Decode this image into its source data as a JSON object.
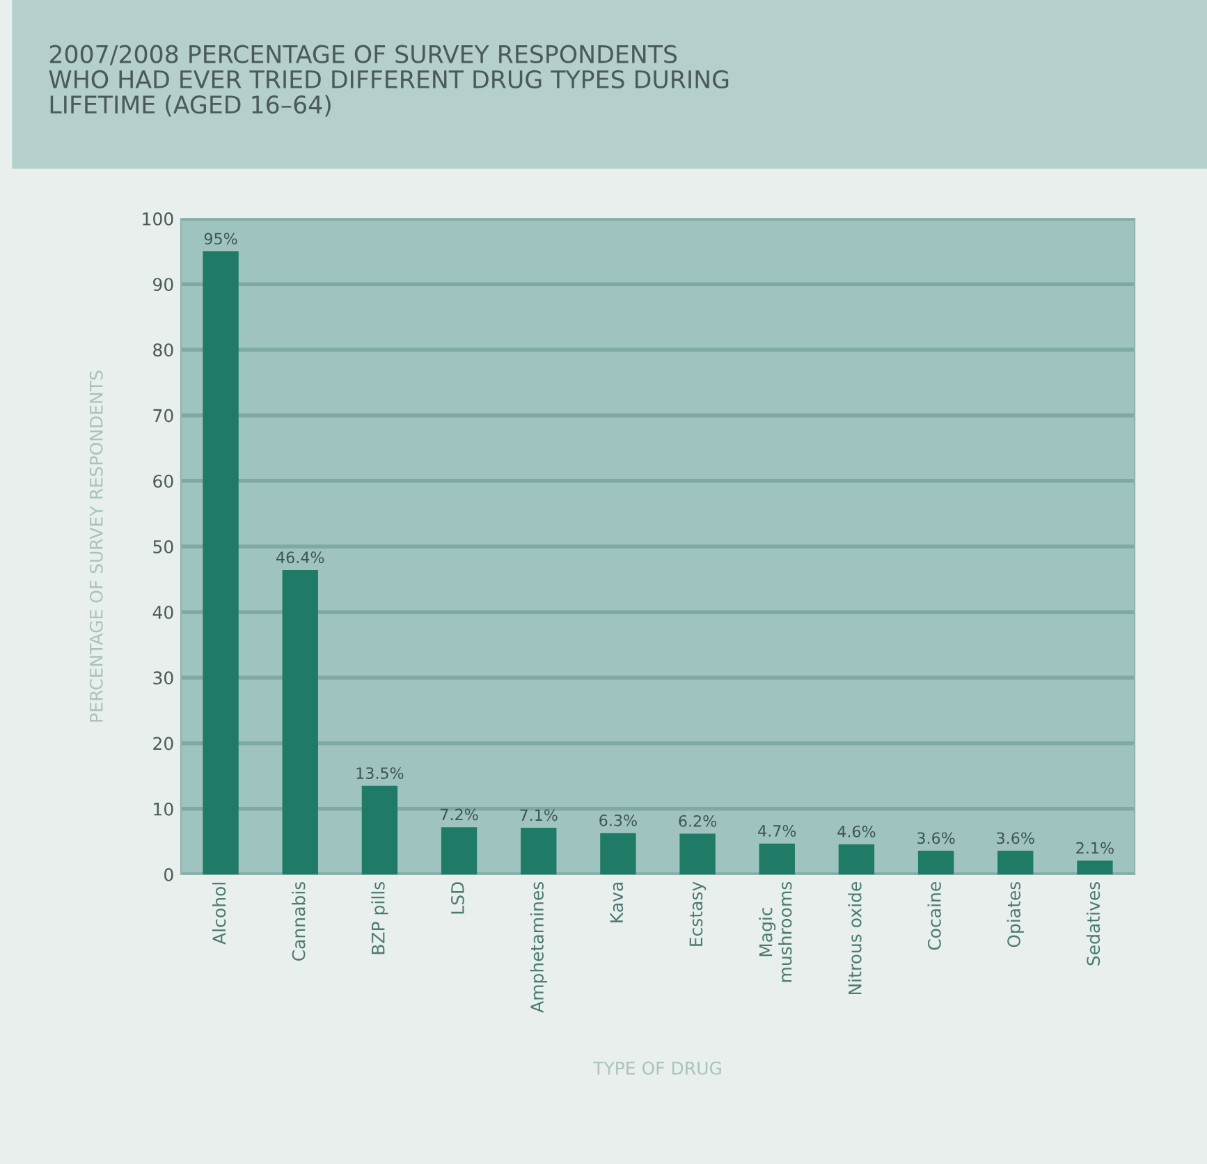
{
  "chart_data": {
    "type": "bar",
    "title": "2007/2008 PERCENTAGE OF SURVEY RESPONDENTS\nWHO HAD EVER TRIED DIFFERENT DRUG TYPES DURING\nLIFETIME (AGED 16–64)",
    "xlabel": "TYPE OF DRUG",
    "ylabel": "PERCENTAGE OF SURVEY RESPONDENTS",
    "categories": [
      "Alcohol",
      "Cannabis",
      "BZP pills",
      "LSD",
      "Amphetamines",
      "Kava",
      "Ecstasy",
      "Magic\nmushrooms",
      "Nitrous oxide",
      "Cocaine",
      "Opiates",
      "Sedatives"
    ],
    "values": [
      95,
      46.4,
      13.5,
      7.2,
      7.1,
      6.3,
      6.2,
      4.7,
      4.6,
      3.6,
      3.6,
      2.1
    ],
    "value_labels": [
      "95%",
      "46.4%",
      "13.5%",
      "7.2%",
      "7.1%",
      "6.3%",
      "6.2%",
      "4.7%",
      "4.6%",
      "3.6%",
      "3.6%",
      "2.1%"
    ],
    "color": "#1f7a66",
    "ylim": [
      0,
      100
    ],
    "yticks": [
      0,
      10,
      20,
      30,
      40,
      50,
      60,
      70,
      80,
      90,
      100
    ],
    "grid": "y"
  }
}
